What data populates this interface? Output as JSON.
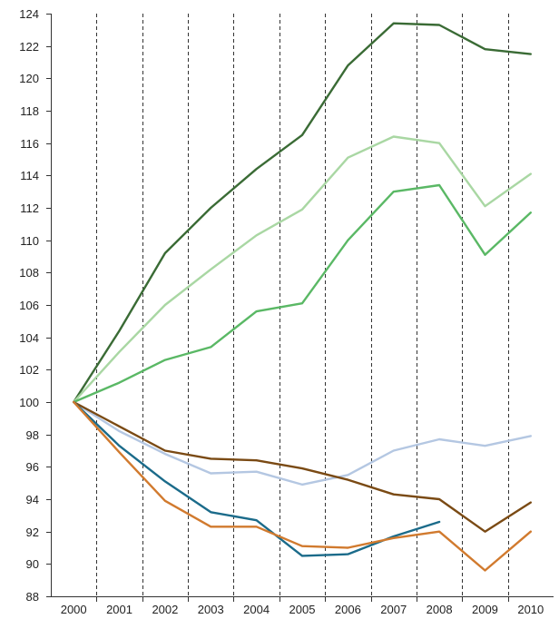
{
  "chart_data": {
    "type": "line",
    "title": "",
    "xlabel": "",
    "ylabel": "",
    "x": [
      2000,
      2001,
      2002,
      2003,
      2004,
      2005,
      2006,
      2007,
      2008,
      2009,
      2010
    ],
    "x_tick_labels": [
      "2000",
      "2001",
      "2002",
      "2003",
      "2004",
      "2005",
      "2006",
      "2007",
      "2008",
      "2009",
      "2010"
    ],
    "ylim": [
      88,
      124
    ],
    "y_ticks": [
      88,
      90,
      92,
      94,
      96,
      98,
      100,
      102,
      104,
      106,
      108,
      110,
      112,
      114,
      116,
      118,
      120,
      122,
      124
    ],
    "y_tick_labels": [
      "88",
      "90",
      "92",
      "94",
      "96",
      "98",
      "100",
      "102",
      "104",
      "106",
      "108",
      "110",
      "112",
      "114",
      "116",
      "118",
      "120",
      "122",
      "124"
    ],
    "grid": "vertical dashed lines at each year",
    "legend": "none",
    "series": [
      {
        "color": "#3a6b35",
        "values": [
          100,
          104.4,
          109.2,
          112.0,
          114.4,
          116.5,
          120.8,
          123.4,
          123.3,
          121.8,
          121.5
        ]
      },
      {
        "color": "#a9d7a3",
        "values": [
          100,
          103.1,
          106.0,
          108.2,
          110.3,
          111.9,
          115.1,
          116.4,
          116.0,
          112.1,
          114.1
        ]
      },
      {
        "color": "#5ab865",
        "values": [
          100,
          101.2,
          102.6,
          103.4,
          105.6,
          106.1,
          110.0,
          113.0,
          113.4,
          109.1,
          111.7
        ]
      },
      {
        "color": "#b4c7e2",
        "values": [
          100,
          98.2,
          96.8,
          95.6,
          95.7,
          94.9,
          95.5,
          97.0,
          97.7,
          97.3,
          97.9
        ]
      },
      {
        "color": "#7a4a14",
        "values": [
          100,
          98.5,
          97.0,
          96.5,
          96.4,
          95.9,
          95.2,
          94.3,
          94.0,
          92.0,
          93.8
        ]
      },
      {
        "color": "#1b6b8a",
        "values": [
          100,
          97.3,
          95.1,
          93.2,
          92.7,
          90.5,
          90.6,
          91.7,
          92.6,
          null,
          null
        ]
      },
      {
        "color": "#d17a2e",
        "values": [
          100,
          96.9,
          93.9,
          92.3,
          92.3,
          91.1,
          91.0,
          91.6,
          92.0,
          89.6,
          92.0
        ]
      }
    ]
  }
}
